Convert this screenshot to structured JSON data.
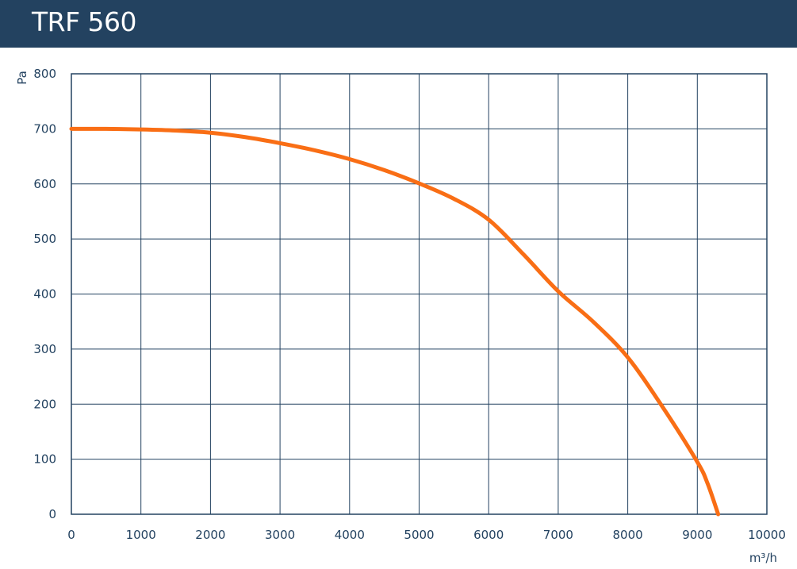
{
  "header": {
    "title": "TRF 560"
  },
  "colors": {
    "header_background": "#234260",
    "grid": "#234260",
    "curve": "#F96E15",
    "text": "#234260"
  },
  "chart_data": {
    "type": "line",
    "title": "TRF 560",
    "xlabel": "m³/h",
    "ylabel": "Pa",
    "xlim": [
      0,
      10000
    ],
    "ylim": [
      0,
      800
    ],
    "x_ticks": [
      0,
      1000,
      2000,
      3000,
      4000,
      5000,
      6000,
      7000,
      8000,
      9000,
      10000
    ],
    "y_ticks": [
      0,
      100,
      200,
      300,
      400,
      500,
      600,
      700,
      800
    ],
    "grid": true,
    "legend": "none",
    "series": [
      {
        "x": [
          0,
          500,
          1000,
          1500,
          2000,
          2500,
          3000,
          3500,
          4000,
          4500,
          5000,
          5500,
          6000,
          6500,
          7000,
          7500,
          8000,
          8500,
          9000,
          9150,
          9300
        ],
        "values": [
          700,
          700,
          699,
          697,
          693,
          685,
          674,
          661,
          645,
          625,
          601,
          573,
          535,
          472,
          405,
          350,
          285,
          195,
          95,
          55,
          0
        ]
      }
    ]
  }
}
